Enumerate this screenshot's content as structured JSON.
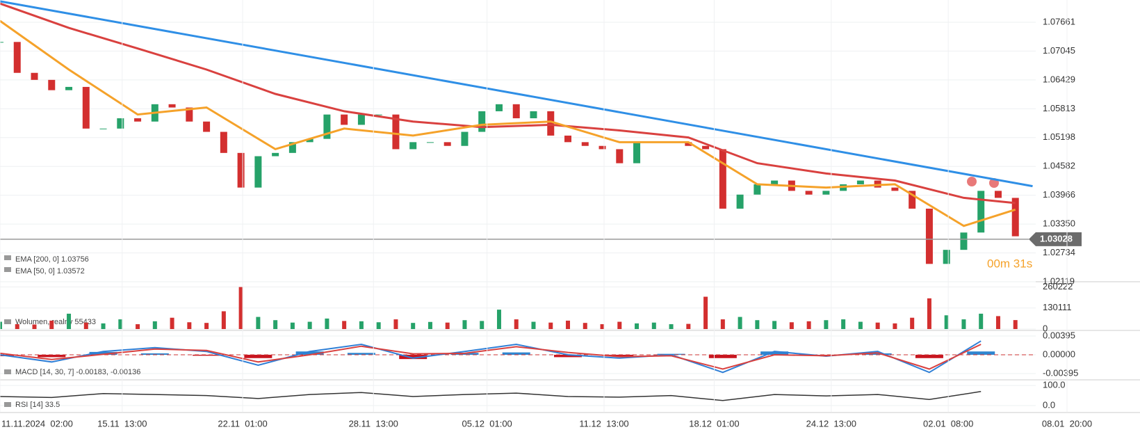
{
  "chart_data": [
    {
      "type": "candlestick",
      "xlim": [
        0,
        62
      ],
      "ylim": [
        1.02119,
        1.08136
      ],
      "yticks": [
        1.07661,
        1.07045,
        1.06429,
        1.05813,
        1.05198,
        1.04582,
        1.03966,
        {
          "value": 1.0335,
          "label": "1.03350"
        },
        1.02734,
        1.02119
      ],
      "color_up": "#26a269",
      "color_down": "#d32f2f",
      "values": [
        1.0724,
        1.0658,
        1.0643,
        1.0621,
        1.0628,
        1.0539,
        1.0539,
        1.0561,
        1.0554,
        1.0591,
        1.0584,
        1.0554,
        1.0532,
        1.0487,
        1.0413,
        1.048,
        1.0487,
        1.051,
        1.0517,
        1.0569,
        1.0547,
        1.0569,
        1.0569,
        1.0495,
        1.051,
        1.051,
        1.0502,
        1.0532,
        1.0576,
        1.0591,
        1.0561,
        1.0576,
        1.0524,
        1.051,
        1.0502,
        1.0495,
        1.0465,
        1.051,
        1.051,
        1.051,
        1.0502,
        1.0495,
        1.0368,
        1.0398,
        1.042,
        1.0428,
        1.0406,
        1.0398,
        1.0406,
        1.042,
        1.0428,
        1.0413,
        1.0406,
        1.0368,
        1.025,
        1.028,
        1.0317,
        1.0406,
        1.0391,
        1.0309
      ],
      "series": [
        {
          "name": "EMA [200, 0] 1.03756",
          "color": "#d9413f",
          "x": [
            0,
            4,
            8,
            12,
            16,
            20,
            24,
            28,
            32,
            36,
            40,
            44,
            48,
            52,
            56,
            59
          ],
          "values": [
            1.0806,
            1.0754,
            1.071,
            1.0665,
            1.0613,
            1.0576,
            1.0554,
            1.0542,
            1.0547,
            1.0535,
            1.052,
            1.0465,
            1.0443,
            1.0428,
            1.0391,
            1.038
          ]
        },
        {
          "name": "EMA [50, 0] 1.03572",
          "color": "#f5a22a",
          "x": [
            0,
            4,
            8,
            12,
            16,
            20,
            24,
            28,
            32,
            36,
            40,
            44,
            48,
            52,
            56,
            59
          ],
          "values": [
            1.0769,
            1.0665,
            1.0569,
            1.0584,
            1.0495,
            1.0539,
            1.0524,
            1.0547,
            1.0554,
            1.051,
            1.051,
            1.042,
            1.0413,
            1.042,
            1.0331,
            1.0366
          ]
        }
      ],
      "trendline": {
        "color": "#2f8fe6",
        "x": [
          0,
          60
        ],
        "values": [
          1.0811,
          1.0416
        ]
      },
      "current_price": 1.03028,
      "countdown": "00m 31s"
    },
    {
      "type": "bar",
      "xlim": [
        0,
        62
      ],
      "ylim": [
        0,
        292750
      ],
      "yticks": [
        260222,
        130111,
        0
      ],
      "legend": "Wolumen, realny 55433",
      "values": [
        45000,
        30000,
        28000,
        52000,
        95000,
        40000,
        35000,
        60000,
        30000,
        48000,
        70000,
        42000,
        38000,
        110000,
        260000,
        75000,
        55000,
        40000,
        45000,
        65000,
        50000,
        48000,
        42000,
        60000,
        38000,
        44000,
        40000,
        55000,
        50000,
        120000,
        60000,
        45000,
        40000,
        52000,
        38000,
        30000,
        45000,
        35000,
        40000,
        30000,
        32000,
        200000,
        60000,
        75000,
        55000,
        50000,
        42000,
        48000,
        55000,
        60000,
        45000,
        40000,
        35000,
        70000,
        190000,
        85000,
        60000,
        95000,
        80000,
        55433
      ]
    },
    {
      "type": "macd",
      "xlim": [
        0,
        62
      ],
      "ylim": [
        -0.00512,
        0.00468
      ],
      "yticks": [
        0.00395,
        {
          "value": 0,
          "label": "0.00000"
        },
        -0.00395
      ],
      "legend": "MACD [14, 30, 7] -0.00183, -0.00136",
      "x": [
        0,
        3,
        6,
        9,
        12,
        15,
        18,
        21,
        24,
        27,
        30,
        33,
        36,
        39,
        42,
        45,
        48,
        51,
        54,
        57
      ],
      "macd": {
        "color": "#2f7fd6",
        "values": [
          0,
          -0.0015,
          0.0007,
          0.0015,
          0.0007,
          -0.0022,
          0.0007,
          0.0022,
          -0.0007,
          0.0007,
          0.0022,
          0,
          -0.0007,
          0,
          -0.0037,
          0.0007,
          -0.0003,
          0.0007,
          -0.0037,
          0.0029
        ]
      },
      "signal": {
        "color": "#d9413f",
        "values": [
          0.0003,
          -0.001,
          0.0001,
          0.0012,
          0.0009,
          -0.0015,
          0,
          0.0018,
          0.0002,
          0.0003,
          0.0017,
          0.0005,
          -0.0004,
          -0.0002,
          -0.003,
          0,
          -0.0002,
          0.0004,
          -0.003,
          0.0022
        ]
      },
      "histogram": {
        "color_up": "#2f86d0",
        "color_down": "#c8141e",
        "values": [
          -0.0003,
          -0.0005,
          0.0006,
          0.0003,
          -0.0002,
          -0.0007,
          0.0007,
          0.0004,
          -0.0009,
          0.0004,
          0.0005,
          -0.0005,
          -0.0003,
          0.0002,
          -0.0007,
          0.0007,
          -0.0001,
          0.0003,
          -0.0007,
          0.0007
        ]
      }
    },
    {
      "type": "line",
      "xlim": [
        0,
        62
      ],
      "ylim": [
        -31,
        121
      ],
      "yticks": [
        {
          "value": 100,
          "label": "100.0"
        },
        {
          "value": 0,
          "label": "0.0"
        }
      ],
      "legend": "RSI [14] 33.5",
      "color": "#333333",
      "x": [
        0,
        3,
        6,
        9,
        12,
        15,
        18,
        21,
        24,
        27,
        30,
        33,
        36,
        39,
        42,
        45,
        48,
        51,
        54,
        57
      ],
      "values": [
        45,
        40,
        60,
        55,
        50,
        35,
        55,
        65,
        45,
        55,
        62,
        45,
        42,
        50,
        25,
        55,
        48,
        55,
        30,
        70
      ],
      "xticks": [
        {
          "value": 0,
          "label": "11.11.2024  02:00"
        },
        {
          "value": 7.1,
          "label": "15.11  13:00"
        },
        {
          "value": 14.1,
          "label": "22.11  01:00"
        },
        {
          "value": 21.7,
          "label": "28.11  13:00"
        },
        {
          "value": 28.3,
          "label": "05.12  01:00"
        },
        {
          "value": 35.1,
          "label": "11.12  13:00"
        },
        {
          "value": 41.5,
          "label": "18.12  01:00"
        },
        {
          "value": 48.3,
          "label": "24.12  13:00"
        },
        {
          "value": 55.1,
          "label": "02.01  08:00"
        },
        {
          "value": 62,
          "label": "08.01  20:00"
        }
      ]
    }
  ]
}
